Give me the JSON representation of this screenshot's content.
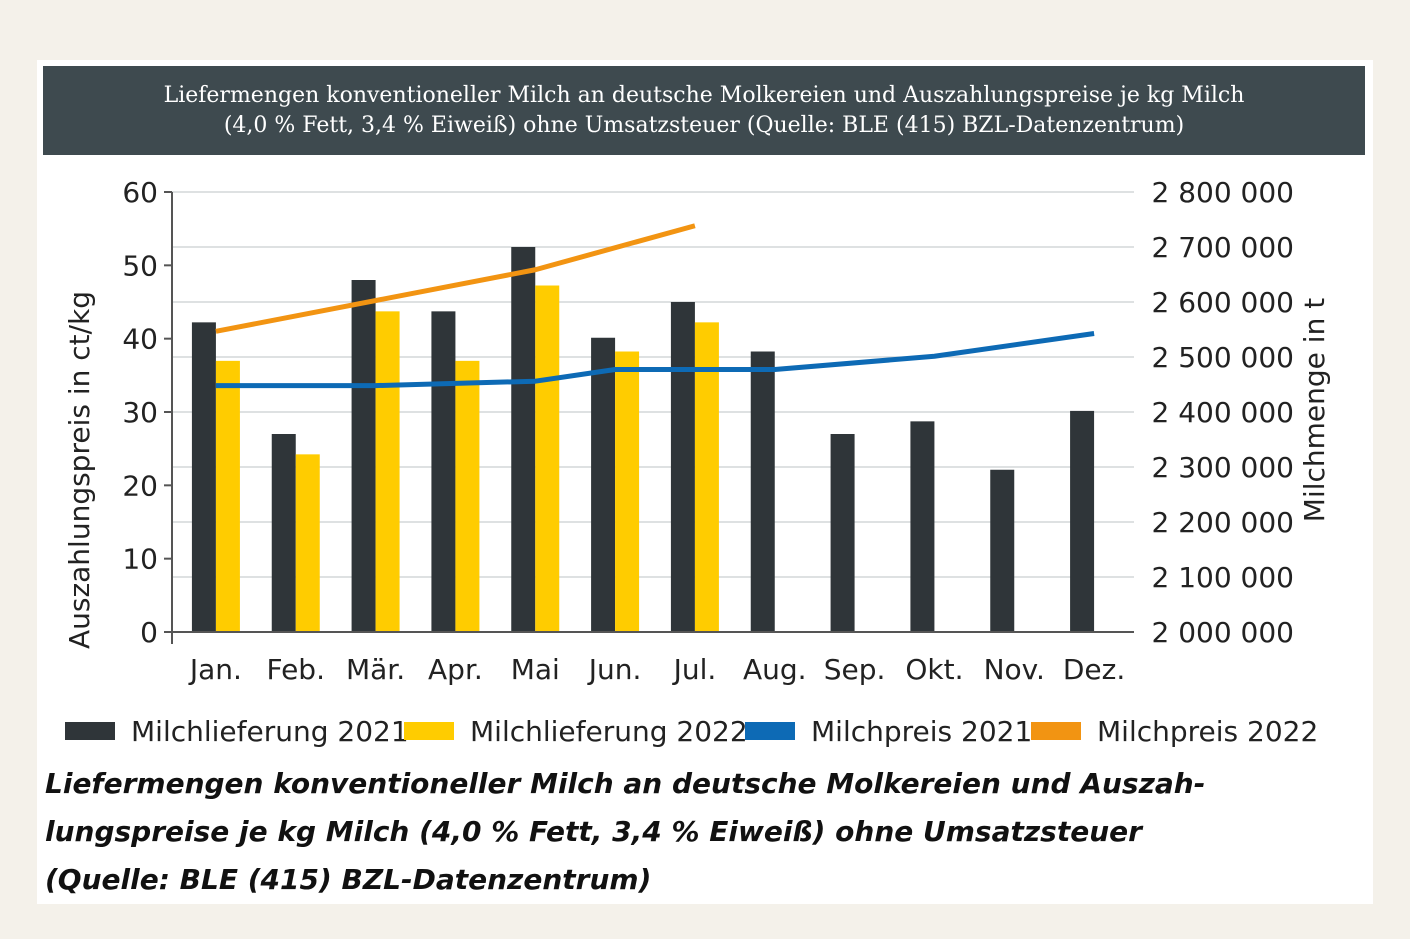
{
  "header": {
    "line1": "Liefermengen konventioneller Milch an deutsche Molkereien und Auszahlungspreise je kg Milch",
    "line2": "(4,0 % Fett, 3,4 % Eiweiß) ohne Umsatzsteuer (Quelle: BLE (415) BZL-Datenzentrum)"
  },
  "caption": {
    "line1": "Liefermengen konventioneller Milch an deutsche Molkereien und Auszah-",
    "line2": "lungspreise je kg Milch (4,0 % Fett, 3,4 % Eiweiß) ohne Umsatzsteuer",
    "line3": "(Quelle: BLE (415) BZL-Datenzentrum)"
  },
  "chart_data": {
    "type": "bar",
    "categories": [
      "Jan.",
      "Feb.",
      "Mär.",
      "Apr.",
      "Mai",
      "Jun.",
      "Jul.",
      "Aug.",
      "Sep.",
      "Okt.",
      "Nov.",
      "Dez."
    ],
    "ylabel_left": "Auszahlungspreis in ct/kg",
    "ylabel_right": "Milchmenge in t",
    "ylim_left": [
      0,
      60
    ],
    "ylim_right": [
      2000000,
      2800000
    ],
    "yticks_left": [
      "0",
      "10",
      "20",
      "30",
      "40",
      "50",
      "60"
    ],
    "yticks_right": [
      "2 000 000",
      "2 100 000",
      "2 200 000",
      "2 300 000",
      "2 400 000",
      "2 500 000",
      "2 600 000",
      "2 700 000",
      "2 800 000"
    ],
    "grid": true,
    "legend_position": "bottom",
    "series": [
      {
        "name": "Milchlieferung 2021",
        "kind": "bar",
        "axis": "right",
        "color": "#2f3539",
        "values": [
          2563000,
          2360000,
          2640000,
          2583000,
          2700000,
          2535000,
          2600000,
          2510000,
          2360000,
          2383000,
          2295000,
          2402000
        ]
      },
      {
        "name": "Milchlieferung 2022",
        "kind": "bar",
        "axis": "right",
        "color": "#ffcc00",
        "values": [
          2493000,
          2323000,
          2583000,
          2493000,
          2630000,
          2510000,
          2563000,
          null,
          null,
          null,
          null,
          null
        ]
      },
      {
        "name": "Milchpreis 2021",
        "kind": "line",
        "axis": "left",
        "color": "#0d6ab5",
        "values": [
          33.6,
          33.6,
          33.6,
          33.9,
          34.2,
          35.8,
          35.8,
          35.8,
          null,
          37.6,
          null,
          40.7
        ]
      },
      {
        "name": "Milchpreis 2022",
        "kind": "line",
        "axis": "left",
        "color": "#f29412",
        "values": [
          41.0,
          null,
          null,
          null,
          49.4,
          null,
          55.4,
          null,
          null,
          null,
          null,
          null
        ]
      }
    ]
  }
}
